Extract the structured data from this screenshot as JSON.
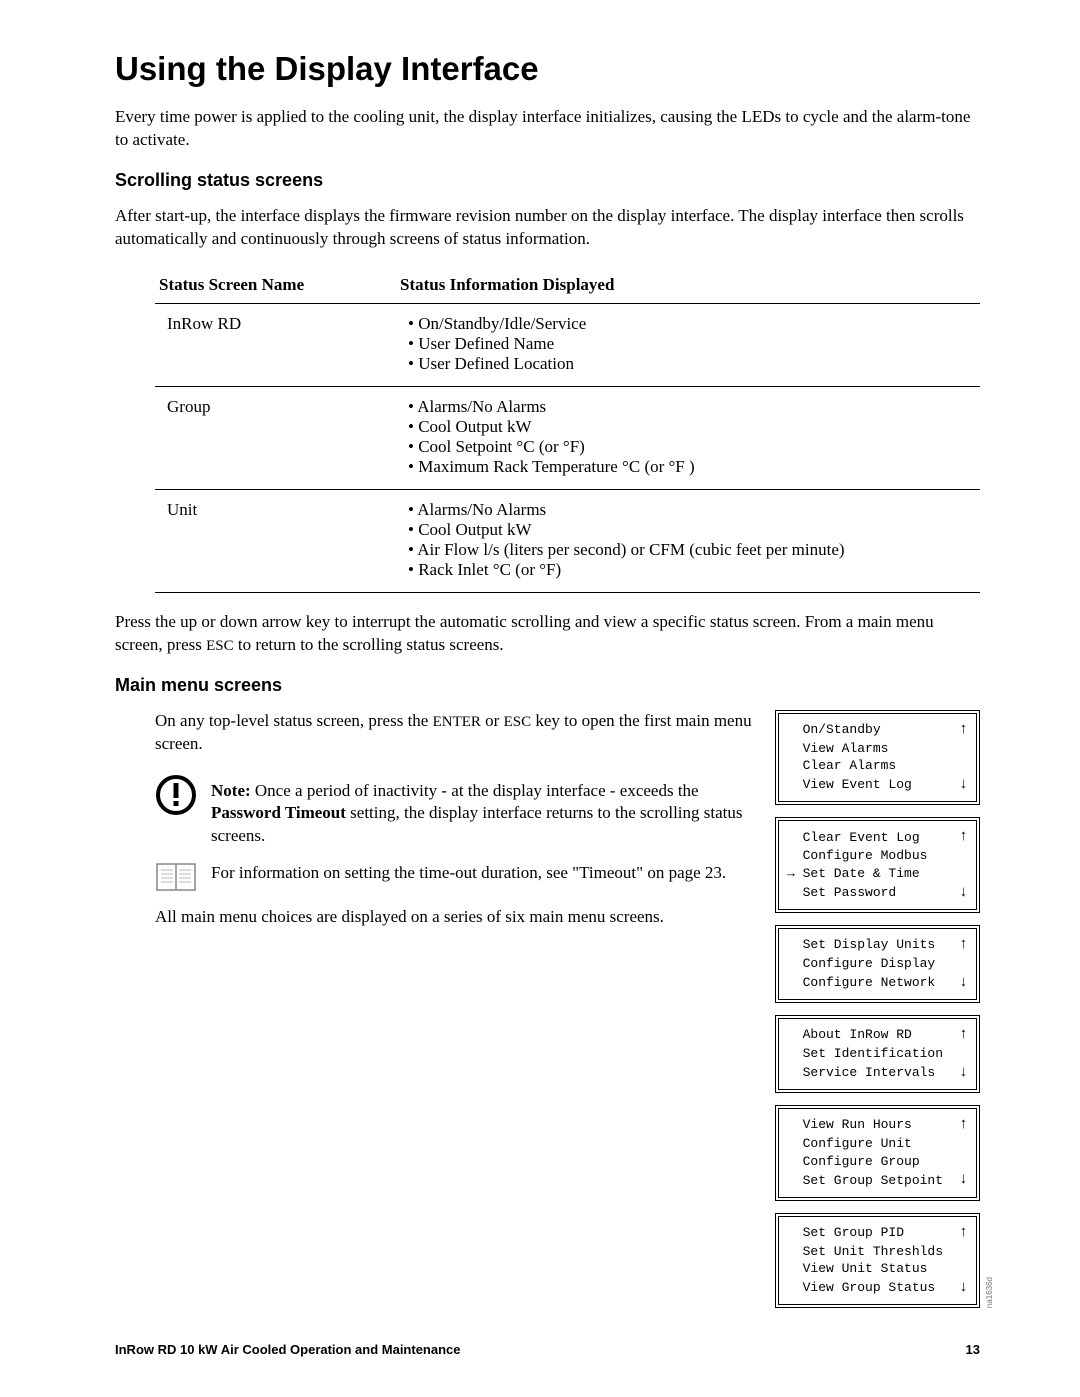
{
  "title": "Using the Display Interface",
  "intro": "Every time power is applied to the cooling unit, the display interface initializes, causing the LEDs to cycle and the alarm-tone to activate.",
  "section1": {
    "heading": "Scrolling status screens",
    "para": "After start-up, the interface displays the firmware revision number on the display interface. The display interface then scrolls automatically and continuously through screens of status information."
  },
  "table": {
    "headers": [
      "Status Screen Name",
      "Status Information Displayed"
    ],
    "rows": [
      {
        "name": "InRow RD",
        "items": [
          "On/Standby/Idle/Service",
          "User Defined Name",
          "User Defined Location"
        ]
      },
      {
        "name": "Group",
        "items": [
          "Alarms/No Alarms",
          "Cool Output kW",
          "Cool Setpoint °C (or °F)",
          "Maximum Rack Temperature °C (or °F )"
        ]
      },
      {
        "name": "Unit",
        "items": [
          "Alarms/No Alarms",
          "Cool Output kW",
          "Air Flow l/s (liters per second) or CFM (cubic feet per minute)",
          "Rack Inlet °C (or °F)"
        ]
      }
    ]
  },
  "afterTable": {
    "p1a": "Press the up or down arrow key to interrupt the automatic scrolling and view a specific status screen. From a main menu screen, press ",
    "p1b": "ESC",
    "p1c": " to return to the scrolling status screens."
  },
  "section2": {
    "heading": "Main menu screens",
    "p1a": "On any top-level status screen, press the ",
    "p1b": "ENTER",
    "p1c": " or ",
    "p1d": "ESC",
    "p1e": " key to open the first main menu screen.",
    "note_label": "Note:",
    "note_body": " Once a period of inactivity - at the display interface - exceeds the ",
    "note_bold": "Password Timeout",
    "note_body2": " setting, the display interface returns to the scrolling status screens.",
    "ref": "For information on setting the time-out duration, see \"Timeout\" on page 23.",
    "p2": "All main menu choices are displayed on a series of six main menu screens."
  },
  "menus": [
    {
      "lines": [
        "On/Standby",
        "View Alarms",
        "Clear Alarms",
        "View Event Log"
      ],
      "upOn": 0,
      "downOn": 3,
      "pointer": -1
    },
    {
      "lines": [
        "Clear Event Log",
        "Configure Modbus",
        "Set Date & Time",
        "Set Password"
      ],
      "upOn": 0,
      "downOn": 3,
      "pointer": 2
    },
    {
      "lines": [
        "Set Display Units",
        "Configure Display",
        "Configure Network"
      ],
      "upOn": 0,
      "downOn": 2,
      "pointer": -1
    },
    {
      "lines": [
        "About InRow RD",
        "Set Identification",
        "Service Intervals"
      ],
      "upOn": 0,
      "downOn": 2,
      "pointer": -1
    },
    {
      "lines": [
        "View Run Hours",
        "Configure Unit",
        "Configure Group",
        "Set Group Setpoint"
      ],
      "upOn": 0,
      "downOn": 3,
      "pointer": -1
    },
    {
      "lines": [
        "Set Group PID",
        "Set Unit Threshlds",
        "View Unit Status",
        "View Group Status"
      ],
      "upOn": 0,
      "downOn": 3,
      "pointer": -1
    }
  ],
  "sideLabel": "na1636d",
  "footer": {
    "title": "InRow RD 10 kW Air Cooled Operation and Maintenance",
    "page": "13"
  }
}
